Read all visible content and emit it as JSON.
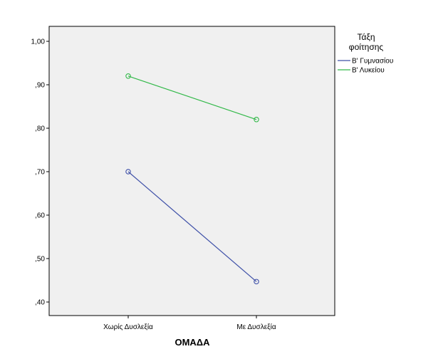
{
  "chart_data": {
    "type": "line",
    "categories": [
      "Χωρίς Δυσλεξία",
      "Με Δυσλεξία"
    ],
    "series": [
      {
        "name": "Β' Γυμνασίου",
        "values": [
          0.7,
          0.447
        ],
        "color": "#3f51a8"
      },
      {
        "name": "Β' Λυκείου",
        "values": [
          0.92,
          0.82
        ],
        "color": "#33b94a"
      }
    ],
    "xlabel": "ΟΜΑΔΑ",
    "ylabel": "",
    "ylim": [
      0.38,
      1.05
    ],
    "y_ticks": [
      1.0,
      0.9,
      0.8,
      0.7,
      0.6,
      0.5,
      0.4
    ],
    "y_tick_labels": [
      "1,00",
      ",90",
      ",80",
      ",70",
      ",60",
      ",50",
      ",40"
    ],
    "legend": {
      "title_line1": "Τάξη",
      "title_line2": "φοίτησης",
      "placement": "right"
    },
    "grid": false,
    "plot_background": "#f0f0f0",
    "marker": "open-circle"
  }
}
